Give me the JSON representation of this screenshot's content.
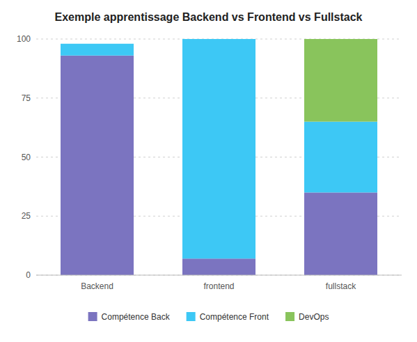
{
  "chart_data": {
    "type": "bar",
    "stacked": true,
    "title": "Exemple apprentissage Backend vs Frontend vs Fullstack",
    "categories": [
      "Backend",
      "frontend",
      "fullstack"
    ],
    "series": [
      {
        "name": "Compétence Back",
        "color": "#7b74c0",
        "values": [
          93,
          7,
          35
        ]
      },
      {
        "name": "Compétence Front",
        "color": "#3dc8f5",
        "values": [
          5,
          93,
          30
        ]
      },
      {
        "name": "DevOps",
        "color": "#89c45c",
        "values": [
          0,
          0,
          35
        ]
      }
    ],
    "ylim": [
      0,
      100
    ],
    "yticks": [
      0,
      25,
      50,
      75,
      100
    ],
    "grid": true,
    "legend": "bottom"
  }
}
